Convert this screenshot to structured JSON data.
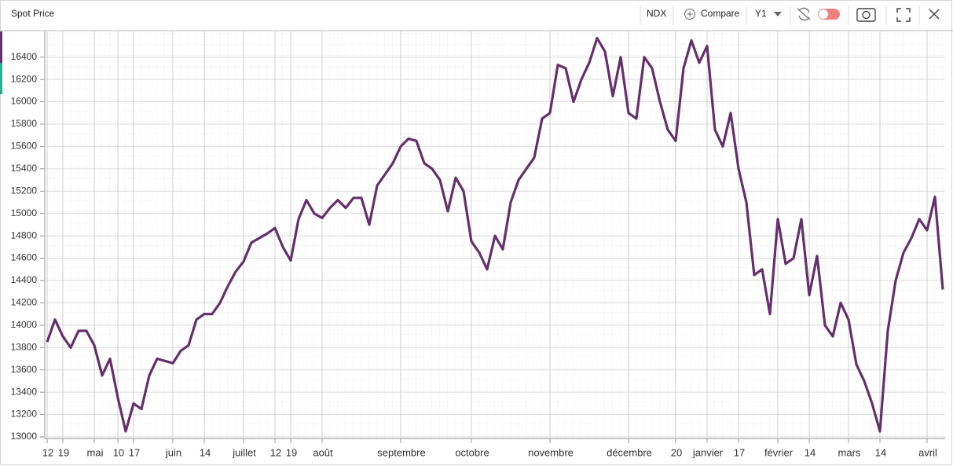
{
  "header": {
    "title": "Spot Price",
    "symbol": "NDX",
    "compare": "Compare",
    "period": "Y1"
  },
  "chart_data": {
    "type": "line",
    "categories": [
      "12",
      null,
      "19",
      null,
      null,
      null,
      "mai",
      null,
      null,
      "10",
      null,
      "17",
      null,
      null,
      null,
      null,
      "juin",
      null,
      null,
      null,
      "14",
      null,
      null,
      null,
      null,
      "juillet",
      null,
      null,
      null,
      "12",
      null,
      "19",
      null,
      null,
      null,
      "août",
      null,
      null,
      null,
      null,
      null,
      null,
      null,
      null,
      null,
      "septembre",
      null,
      null,
      null,
      null,
      null,
      null,
      null,
      null,
      "octobre",
      null,
      null,
      null,
      null,
      null,
      null,
      null,
      null,
      null,
      "novembre",
      null,
      null,
      null,
      null,
      null,
      null,
      null,
      null,
      null,
      "décembre",
      null,
      null,
      null,
      null,
      null,
      "20",
      null,
      null,
      null,
      "janvier",
      null,
      null,
      null,
      "17",
      null,
      null,
      null,
      null,
      "février",
      null,
      null,
      null,
      "14",
      null,
      null,
      null,
      null,
      "mars",
      null,
      null,
      null,
      "14",
      null,
      null,
      null,
      null,
      null,
      "avril",
      null,
      null
    ],
    "series": [
      {
        "name": "NDX",
        "color": "#652f6c",
        "values": [
          13850,
          14050,
          13900,
          13800,
          13950,
          13950,
          13820,
          13550,
          13700,
          13350,
          13050,
          13300,
          13250,
          13550,
          13700,
          13680,
          13660,
          13770,
          13820,
          14050,
          14100,
          14100,
          14200,
          14350,
          14480,
          14570,
          14740,
          14780,
          14820,
          14870,
          14700,
          14580,
          14950,
          15120,
          15000,
          14960,
          15050,
          15120,
          15050,
          15140,
          15140,
          14900,
          15250,
          15350,
          15450,
          15600,
          15670,
          15650,
          15450,
          15400,
          15300,
          15020,
          15320,
          15200,
          14750,
          14650,
          14500,
          14800,
          14680,
          15100,
          15300,
          15400,
          15500,
          15850,
          15900,
          16330,
          16300,
          16000,
          16200,
          16350,
          16570,
          16450,
          16050,
          16400,
          15900,
          15850,
          16400,
          16300,
          16000,
          15750,
          15650,
          16300,
          16550,
          16350,
          16500,
          15750,
          15600,
          15900,
          15400,
          15100,
          14450,
          14500,
          14100,
          14950,
          14550,
          14600,
          14950,
          14270,
          14620,
          14000,
          13900,
          14200,
          14050,
          13650,
          13500,
          13300,
          13050,
          13950,
          14400,
          14650,
          14780,
          14950,
          14850,
          15150,
          14320
        ]
      }
    ],
    "ylim": [
      13000,
      16630
    ],
    "yticks": [
      13000,
      13200,
      13400,
      13600,
      13800,
      14000,
      14200,
      14400,
      14600,
      14800,
      15000,
      15200,
      15400,
      15600,
      15800,
      16000,
      16200,
      16400
    ],
    "grid": true
  }
}
